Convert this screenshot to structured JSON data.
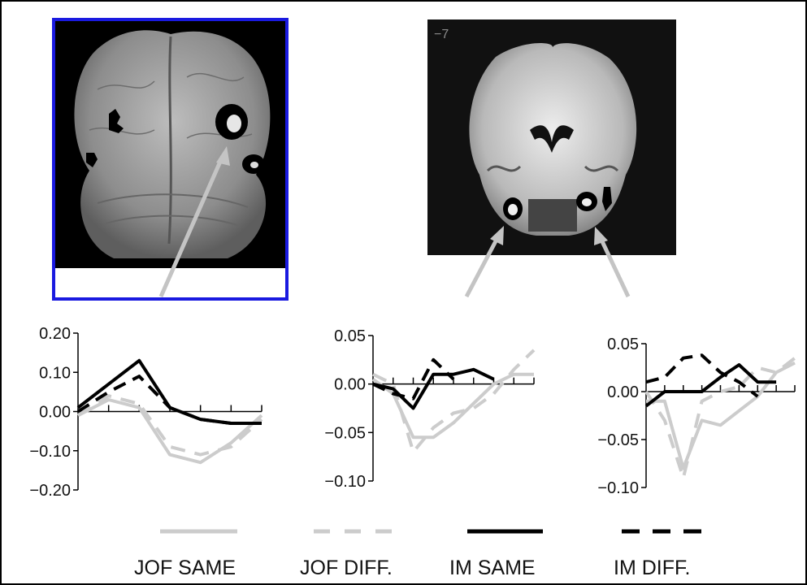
{
  "slice_label": "−7",
  "legend": [
    {
      "label": "JOF SAME",
      "color": "#cccccc",
      "dashed": false
    },
    {
      "label": "JOF DIFF.",
      "color": "#cccccc",
      "dashed": true
    },
    {
      "label": "IM SAME",
      "color": "#000000",
      "dashed": false
    },
    {
      "label": "IM DIFF.",
      "color": "#000000",
      "dashed": true
    }
  ],
  "chart_data": [
    {
      "type": "line",
      "x": [
        0,
        1,
        2,
        3,
        4,
        5,
        6
      ],
      "ylim": [
        -0.2,
        0.2
      ],
      "yticks": [
        "0.20",
        "0.10",
        "0.00",
        "−0.10",
        "−0.20"
      ],
      "series": [
        {
          "name": "JOF SAME",
          "values": [
            -0.01,
            0.03,
            0.01,
            -0.11,
            -0.13,
            -0.08,
            -0.01
          ]
        },
        {
          "name": "JOF DIFF.",
          "values": [
            -0.01,
            0.04,
            0.02,
            -0.09,
            -0.11,
            -0.09,
            -0.02
          ]
        },
        {
          "name": "IM SAME",
          "values": [
            0.01,
            0.07,
            0.13,
            0.01,
            -0.02,
            -0.03,
            -0.03
          ]
        },
        {
          "name": "IM DIFF.",
          "values": [
            0.0,
            0.05,
            0.09,
            0.01,
            -0.02,
            -0.03,
            -0.03
          ]
        }
      ]
    },
    {
      "type": "line",
      "x": [
        0,
        1,
        2,
        3,
        4,
        5,
        6,
        7,
        8
      ],
      "ylim": [
        -0.1,
        0.05
      ],
      "yticks": [
        "0.05",
        "0.00",
        "−0.05",
        "−0.10"
      ],
      "series": [
        {
          "name": "JOF SAME",
          "values": [
            0.005,
            -0.01,
            -0.055,
            -0.055,
            -0.04,
            -0.02,
            0.0,
            0.01,
            0.01
          ]
        },
        {
          "name": "JOF DIFF.",
          "values": [
            0.01,
            0.0,
            -0.07,
            -0.045,
            -0.03,
            -0.025,
            -0.01,
            0.015,
            0.035
          ]
        },
        {
          "name": "IM SAME",
          "values": [
            0.0,
            -0.005,
            -0.025,
            0.01,
            0.01,
            0.015,
            0.005,
            null,
            null
          ]
        },
        {
          "name": "IM DIFF.",
          "values": [
            0.0,
            -0.01,
            -0.015,
            0.025,
            0.005,
            null,
            null,
            null,
            null
          ]
        }
      ]
    },
    {
      "type": "line",
      "x": [
        0,
        1,
        2,
        3,
        4,
        5,
        6,
        7,
        8
      ],
      "ylim": [
        -0.1,
        0.05
      ],
      "yticks": [
        "0.05",
        "0.00",
        "−0.05",
        "−0.10"
      ],
      "series": [
        {
          "name": "JOF SAME",
          "values": [
            -0.01,
            -0.01,
            -0.08,
            -0.03,
            -0.035,
            -0.02,
            -0.005,
            0.02,
            0.03
          ]
        },
        {
          "name": "JOF DIFF.",
          "values": [
            0.0,
            -0.03,
            -0.09,
            -0.01,
            0.0,
            0.005,
            0.025,
            0.02,
            0.035
          ]
        },
        {
          "name": "IM SAME",
          "values": [
            -0.015,
            0.0,
            0.0,
            0.0,
            0.015,
            0.028,
            0.01,
            0.01,
            null
          ]
        },
        {
          "name": "IM DIFF.",
          "values": [
            0.01,
            0.015,
            0.035,
            0.038,
            0.02,
            0.01,
            -0.005,
            null,
            null
          ]
        }
      ]
    }
  ]
}
